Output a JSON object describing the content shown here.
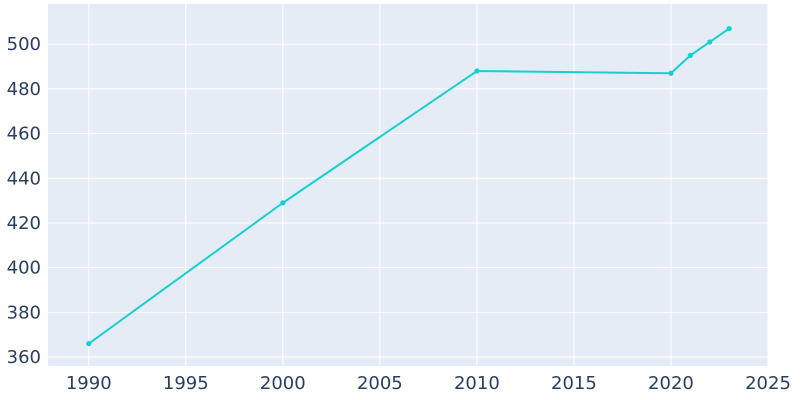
{
  "chart_data": {
    "type": "line",
    "title": "",
    "xlabel": "",
    "ylabel": "",
    "x": [
      1990,
      2000,
      2010,
      2020,
      2021,
      2022,
      2023
    ],
    "series": [
      {
        "values": [
          366,
          429,
          488,
          487,
          495,
          501,
          507
        ]
      }
    ],
    "xlim": [
      1987.9,
      2025
    ],
    "ylim": [
      356,
      518
    ],
    "x_ticks": [
      1990,
      1995,
      2000,
      2005,
      2010,
      2015,
      2020,
      2025
    ],
    "y_ticks": [
      360,
      380,
      400,
      420,
      440,
      460,
      480,
      500
    ],
    "x_tick_labels": [
      "1990",
      "1995",
      "2000",
      "2005",
      "2010",
      "2015",
      "2020",
      "2025"
    ],
    "y_tick_labels": [
      "360",
      "380",
      "400",
      "420",
      "440",
      "460",
      "480",
      "500"
    ],
    "grid": true,
    "colors": {
      "line": "#17cfd0",
      "plot_bg": "#e5ecf6",
      "grid": "#ffffff",
      "tick_text": "#2a3f5f"
    }
  }
}
